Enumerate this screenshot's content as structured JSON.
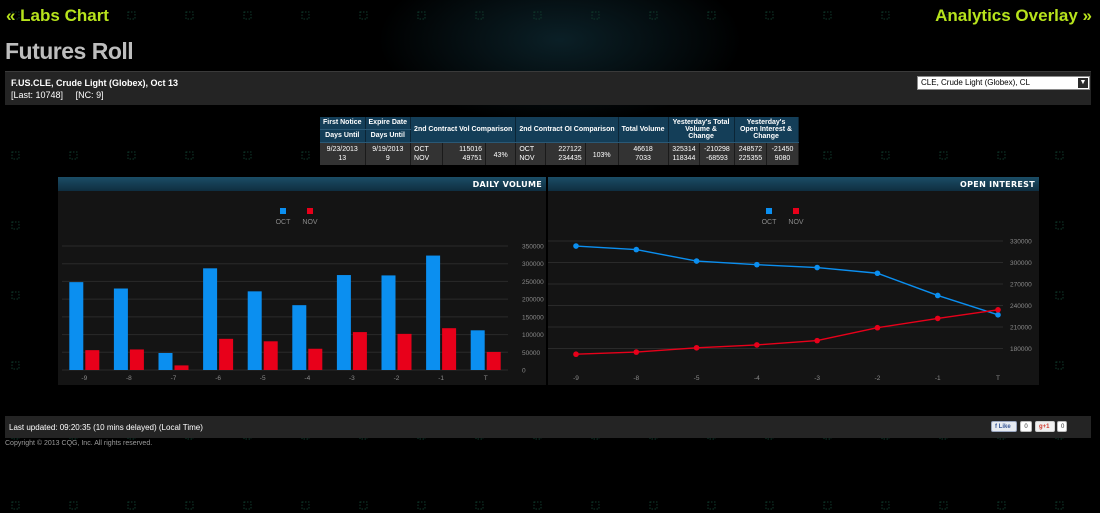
{
  "nav": {
    "back_label": "« Labs Chart",
    "forward_label": "Analytics Overlay »"
  },
  "page": {
    "title": "Futures Roll"
  },
  "instrument": {
    "name": "F.US.CLE, Crude Light (Globex), Oct 13",
    "last": "[Last: 10748]",
    "nc": "[NC: 9]",
    "selector_value": "CLE, Crude Light (Globex), CL"
  },
  "roll_table": {
    "headers": {
      "first_notice": "First Notice",
      "expire_date": "Expire Date",
      "days_until_1": "Days Until",
      "days_until_2": "Days Until",
      "vol_comparison": "2nd Contract Vol Comparison",
      "oi_comparison": "2nd Contract OI Comparison",
      "total_volume": "Total Volume",
      "yest_volume": "Yesterday's Total Volume & Change",
      "yest_oi": "Yesterday's Open Interest & Change"
    },
    "values": {
      "first_notice_date": "9/23/2013",
      "first_notice_days": "13",
      "expire_date": "9/19/2013",
      "expire_days": "9",
      "vol_month_1": "OCT",
      "vol_month_2": "NOV",
      "vol_value_1": "115016",
      "vol_value_2": "49751",
      "vol_pct": "43%",
      "oi_month_1": "OCT",
      "oi_month_2": "NOV",
      "oi_value_1": "227122",
      "oi_value_2": "234435",
      "oi_pct": "103%",
      "total_volume_1": "46618",
      "total_volume_2": "7033",
      "yest_vol_1": "325314",
      "yest_vol_change_1": "-210298",
      "yest_vol_2": "118344",
      "yest_vol_change_2": "-68593",
      "yest_oi_1": "248572",
      "yest_oi_change_1": "-21450",
      "yest_oi_2": "225355",
      "yest_oi_change_2": "9080"
    }
  },
  "colors": {
    "oct": "#0b8ff0",
    "nov": "#e8001a",
    "accent": "#b7e31c"
  },
  "chart_data": [
    {
      "type": "bar",
      "title": "DAILY VOLUME",
      "categories": [
        "-9",
        "-8",
        "-7",
        "-6",
        "-5",
        "-4",
        "-3",
        "-2",
        "-1",
        "T"
      ],
      "series": [
        {
          "name": "OCT",
          "values": [
            248000,
            230000,
            48000,
            287000,
            222000,
            183000,
            268000,
            267000,
            323000,
            112000
          ]
        },
        {
          "name": "NOV",
          "values": [
            56000,
            58000,
            13000,
            88000,
            81000,
            60000,
            107000,
            102000,
            118000,
            51000
          ]
        }
      ],
      "ylim": [
        0,
        350000
      ],
      "yticks": [
        "0",
        "50000",
        "100000",
        "150000",
        "200000",
        "250000",
        "300000",
        "350000"
      ],
      "legend": "top-center",
      "grid": true
    },
    {
      "type": "line",
      "title": "OPEN INTEREST",
      "categories": [
        "-9",
        "-8",
        "-5",
        "-4",
        "-3",
        "-2",
        "-1",
        "T"
      ],
      "series": [
        {
          "name": "OCT",
          "values": [
            323000,
            318000,
            302000,
            297000,
            293000,
            285000,
            254000,
            227000
          ]
        },
        {
          "name": "NOV",
          "values": [
            172000,
            175000,
            181000,
            185000,
            191000,
            209000,
            222000,
            234000
          ]
        }
      ],
      "ylim": [
        150000,
        330000
      ],
      "yticks": [
        "180000",
        "210000",
        "240000",
        "270000",
        "300000",
        "330000"
      ],
      "legend": "top-center",
      "grid": true
    }
  ],
  "footer": {
    "updated": "Last updated: 09:20:35 (10 mins delayed) (Local Time)",
    "copyright": "Copyright © 2013 CQG, Inc. All rights reserved.",
    "fb_like": "Like",
    "fb_count": "0",
    "gplus": "+1",
    "gplus_count": "0"
  }
}
